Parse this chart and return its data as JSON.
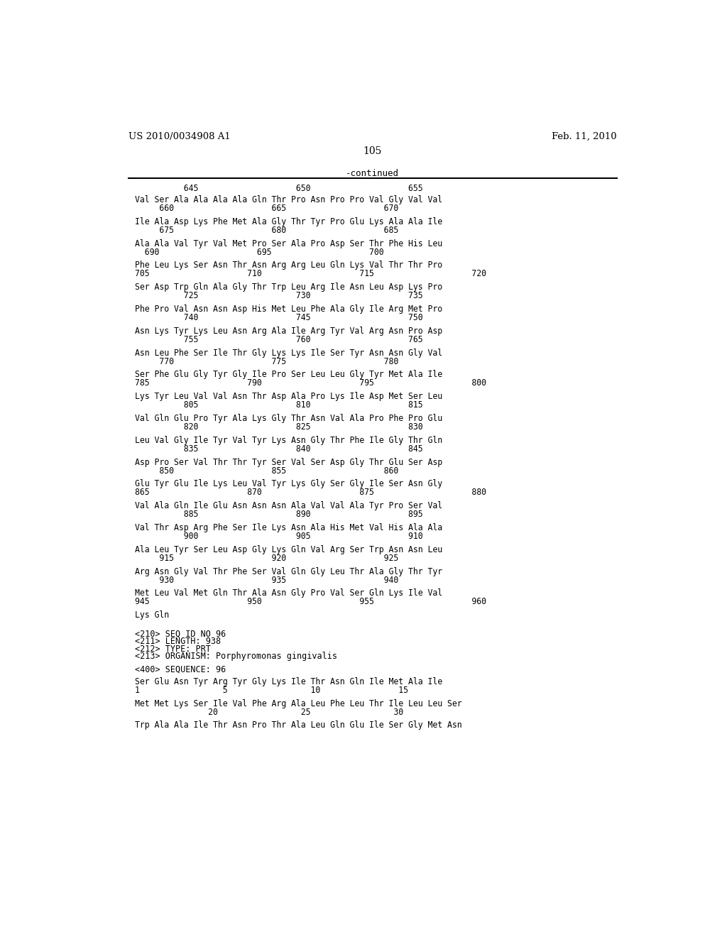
{
  "header_left": "US 2010/0034908 A1",
  "header_right": "Feb. 11, 2010",
  "page_number": "105",
  "continued_label": "-continued",
  "background_color": "#ffffff",
  "text_color": "#000000",
  "mono_font": "monospace",
  "lines": [
    {
      "type": "numline",
      "text": "          645                    650                    655"
    },
    {
      "type": "blank_small"
    },
    {
      "type": "seqline",
      "text": "Val Ser Ala Ala Ala Ala Gln Thr Pro Asn Pro Pro Val Gly Val Val"
    },
    {
      "type": "numline",
      "text": "     660                    665                    670"
    },
    {
      "type": "blank_large"
    },
    {
      "type": "seqline",
      "text": "Ile Ala Asp Lys Phe Met Ala Gly Thr Tyr Pro Glu Lys Ala Ala Ile"
    },
    {
      "type": "numline",
      "text": "     675                    680                    685"
    },
    {
      "type": "blank_large"
    },
    {
      "type": "seqline",
      "text": "Ala Ala Val Tyr Val Met Pro Ser Ala Pro Asp Ser Thr Phe His Leu"
    },
    {
      "type": "numline",
      "text": "  690                    695                    700"
    },
    {
      "type": "blank_large"
    },
    {
      "type": "seqline",
      "text": "Phe Leu Lys Ser Asn Thr Asn Arg Arg Leu Gln Lys Val Thr Thr Pro"
    },
    {
      "type": "numline",
      "text": "705                    710                    715                    720"
    },
    {
      "type": "blank_large"
    },
    {
      "type": "seqline",
      "text": "Ser Asp Trp Gln Ala Gly Thr Trp Leu Arg Ile Asn Leu Asp Lys Pro"
    },
    {
      "type": "numline",
      "text": "          725                    730                    735"
    },
    {
      "type": "blank_large"
    },
    {
      "type": "seqline",
      "text": "Phe Pro Val Asn Asn Asp His Met Leu Phe Ala Gly Ile Arg Met Pro"
    },
    {
      "type": "numline",
      "text": "          740                    745                    750"
    },
    {
      "type": "blank_large"
    },
    {
      "type": "seqline",
      "text": "Asn Lys Tyr Lys Leu Asn Arg Ala Ile Arg Tyr Val Arg Asn Pro Asp"
    },
    {
      "type": "numline",
      "text": "          755                    760                    765"
    },
    {
      "type": "blank_large"
    },
    {
      "type": "seqline",
      "text": "Asn Leu Phe Ser Ile Thr Gly Lys Lys Ile Ser Tyr Asn Asn Gly Val"
    },
    {
      "type": "numline",
      "text": "     770                    775                    780"
    },
    {
      "type": "blank_large"
    },
    {
      "type": "seqline",
      "text": "Ser Phe Glu Gly Tyr Gly Ile Pro Ser Leu Leu Gly Tyr Met Ala Ile"
    },
    {
      "type": "numline",
      "text": "785                    790                    795                    800"
    },
    {
      "type": "blank_large"
    },
    {
      "type": "seqline",
      "text": "Lys Tyr Leu Val Val Asn Thr Asp Ala Pro Lys Ile Asp Met Ser Leu"
    },
    {
      "type": "numline",
      "text": "          805                    810                    815"
    },
    {
      "type": "blank_large"
    },
    {
      "type": "seqline",
      "text": "Val Gln Glu Pro Tyr Ala Lys Gly Thr Asn Val Ala Pro Phe Pro Glu"
    },
    {
      "type": "numline",
      "text": "          820                    825                    830"
    },
    {
      "type": "blank_large"
    },
    {
      "type": "seqline",
      "text": "Leu Val Gly Ile Tyr Val Tyr Lys Asn Gly Thr Phe Ile Gly Thr Gln"
    },
    {
      "type": "numline",
      "text": "          835                    840                    845"
    },
    {
      "type": "blank_large"
    },
    {
      "type": "seqline",
      "text": "Asp Pro Ser Val Thr Thr Tyr Ser Val Ser Asp Gly Thr Glu Ser Asp"
    },
    {
      "type": "numline",
      "text": "     850                    855                    860"
    },
    {
      "type": "blank_large"
    },
    {
      "type": "seqline",
      "text": "Glu Tyr Glu Ile Lys Leu Val Tyr Lys Gly Ser Gly Ile Ser Asn Gly"
    },
    {
      "type": "numline",
      "text": "865                    870                    875                    880"
    },
    {
      "type": "blank_large"
    },
    {
      "type": "seqline",
      "text": "Val Ala Gln Ile Glu Asn Asn Asn Ala Val Val Ala Tyr Pro Ser Val"
    },
    {
      "type": "numline",
      "text": "          885                    890                    895"
    },
    {
      "type": "blank_large"
    },
    {
      "type": "seqline",
      "text": "Val Thr Asp Arg Phe Ser Ile Lys Asn Ala His Met Val His Ala Ala"
    },
    {
      "type": "numline",
      "text": "          900                    905                    910"
    },
    {
      "type": "blank_large"
    },
    {
      "type": "seqline",
      "text": "Ala Leu Tyr Ser Leu Asp Gly Lys Gln Val Arg Ser Trp Asn Asn Leu"
    },
    {
      "type": "numline",
      "text": "     915                    920                    925"
    },
    {
      "type": "blank_large"
    },
    {
      "type": "seqline",
      "text": "Arg Asn Gly Val Thr Phe Ser Val Gln Gly Leu Thr Ala Gly Thr Tyr"
    },
    {
      "type": "numline",
      "text": "     930                    935                    940"
    },
    {
      "type": "blank_large"
    },
    {
      "type": "seqline",
      "text": "Met Leu Val Met Gln Thr Ala Asn Gly Pro Val Ser Gln Lys Ile Val"
    },
    {
      "type": "numline",
      "text": "945                    950                    955                    960"
    },
    {
      "type": "blank_large"
    },
    {
      "type": "seqline",
      "text": "Lys Gln"
    },
    {
      "type": "blank_large"
    },
    {
      "type": "blank_large"
    },
    {
      "type": "meta",
      "text": "<210> SEQ ID NO 96"
    },
    {
      "type": "meta",
      "text": "<211> LENGTH: 938"
    },
    {
      "type": "meta",
      "text": "<212> TYPE: PRT"
    },
    {
      "type": "meta",
      "text": "<213> ORGANISM: Porphyromonas gingivalis"
    },
    {
      "type": "blank_large"
    },
    {
      "type": "meta",
      "text": "<400> SEQUENCE: 96"
    },
    {
      "type": "blank_large"
    },
    {
      "type": "seqline",
      "text": "Ser Glu Asn Tyr Arg Tyr Gly Lys Ile Thr Asn Gln Ile Met Ala Ile"
    },
    {
      "type": "numline",
      "text": "1                 5                 10                15"
    },
    {
      "type": "blank_large"
    },
    {
      "type": "seqline",
      "text": "Met Met Lys Ser Ile Val Phe Arg Ala Leu Phe Leu Thr Ile Leu Leu Ser"
    },
    {
      "type": "numline",
      "text": "               20                 25                 30"
    },
    {
      "type": "blank_large"
    },
    {
      "type": "seqline",
      "text": "Trp Ala Ala Ile Thr Asn Pro Thr Ala Leu Gln Glu Ile Ser Gly Met Asn"
    }
  ]
}
